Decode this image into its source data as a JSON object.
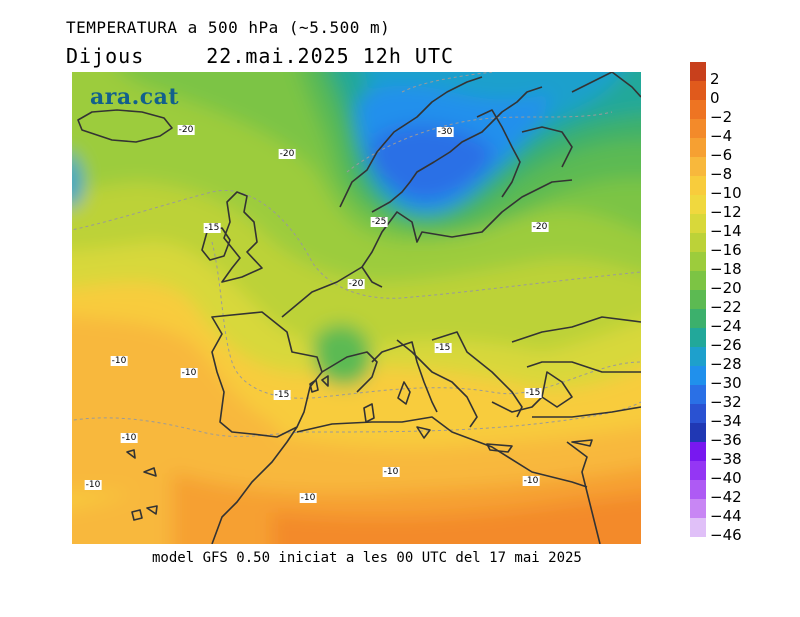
{
  "header": {
    "title": "TEMPERATURA a 500 hPa (~5.500 m)",
    "day": "Dijous",
    "datetime": "22.mai.2025 12h UTC"
  },
  "logo": "ara.cat",
  "footer": "model GFS 0.50 iniciat a les 00 UTC del 17 mai 2025",
  "legend": {
    "levels": [
      {
        "label": "2",
        "color": "#c8401c"
      },
      {
        "label": "0",
        "color": "#e05a1c"
      },
      {
        "label": "−2",
        "color": "#ee7422"
      },
      {
        "label": "−4",
        "color": "#f38a2a"
      },
      {
        "label": "−6",
        "color": "#f6a032"
      },
      {
        "label": "−8",
        "color": "#f8b83c"
      },
      {
        "label": "−10",
        "color": "#f8cc3c"
      },
      {
        "label": "−12",
        "color": "#f0d83e"
      },
      {
        "label": "−14",
        "color": "#d8d83a"
      },
      {
        "label": "−16",
        "color": "#bcd238"
      },
      {
        "label": "−18",
        "color": "#9ccc3c"
      },
      {
        "label": "−20",
        "color": "#7cc444"
      },
      {
        "label": "−22",
        "color": "#5cba52"
      },
      {
        "label": "−24",
        "color": "#3cb06c"
      },
      {
        "label": "−26",
        "color": "#22a89a"
      },
      {
        "label": "−28",
        "color": "#1ea0cc"
      },
      {
        "label": "−30",
        "color": "#2090ec"
      },
      {
        "label": "−32",
        "color": "#2a70e6"
      },
      {
        "label": "−34",
        "color": "#2a52d2"
      },
      {
        "label": "−36",
        "color": "#2038b4"
      },
      {
        "label": "−38",
        "color": "#7818f0"
      },
      {
        "label": "−40",
        "color": "#9436f4"
      },
      {
        "label": "−42",
        "color": "#ae5af4"
      },
      {
        "label": "−44",
        "color": "#c886f4"
      },
      {
        "label": "−46",
        "color": "#e0c0f8"
      }
    ]
  },
  "contour_labels": [
    {
      "text": "-20"
    },
    {
      "text": "-20"
    },
    {
      "text": "-30"
    },
    {
      "text": "-25"
    },
    {
      "text": "-15"
    },
    {
      "text": "-20"
    },
    {
      "text": "-20"
    },
    {
      "text": "-15"
    },
    {
      "text": "-10"
    },
    {
      "text": "-10"
    },
    {
      "text": "-15"
    },
    {
      "text": "-15"
    },
    {
      "text": "-10"
    },
    {
      "text": "-10"
    },
    {
      "text": "-10"
    },
    {
      "text": "-10"
    },
    {
      "text": "-10"
    }
  ]
}
